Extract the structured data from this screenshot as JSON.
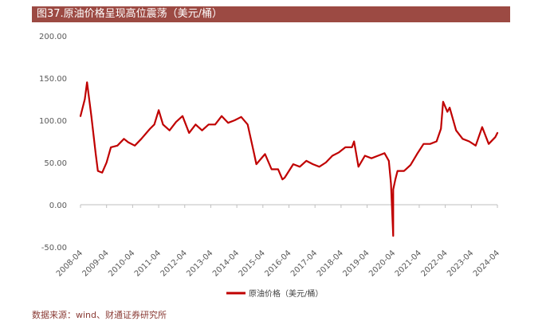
{
  "title": "图37.原油价格呈现高位震荡（美元/桶）",
  "source": "数据来源：wind、财通证券研究所",
  "colors": {
    "title_bg": "#9c4a43",
    "series": "#c00000",
    "axis": "#bfbfbf"
  },
  "chart_data": {
    "type": "line",
    "title": "图37.原油价格呈现高位震荡（美元/桶）",
    "xlabel": "",
    "ylabel": "",
    "ylim": [
      -50,
      200
    ],
    "y_ticks": [
      "200.00",
      "150.00",
      "100.00",
      "50.00",
      "0.00",
      "-50.00"
    ],
    "x_ticks": [
      "2008-04",
      "2009-04",
      "2010-04",
      "2011-04",
      "2012-04",
      "2013-04",
      "2014-04",
      "2015-04",
      "2016-04",
      "2017-04",
      "2018-04",
      "2019-04",
      "2020-04",
      "2021-04",
      "2022-04",
      "2023-04",
      "2024-04"
    ],
    "grid": false,
    "legend": "bottom-center",
    "series": [
      {
        "name": "原油价格（美元/桶）",
        "x": [
          "2008-04",
          "2008-06",
          "2008-07",
          "2008-09",
          "2008-11",
          "2008-12",
          "2009-02",
          "2009-04",
          "2009-06",
          "2009-09",
          "2009-12",
          "2010-02",
          "2010-05",
          "2010-08",
          "2010-12",
          "2011-02",
          "2011-04",
          "2011-06",
          "2011-09",
          "2011-12",
          "2012-03",
          "2012-06",
          "2012-09",
          "2012-12",
          "2013-03",
          "2013-06",
          "2013-09",
          "2013-12",
          "2014-03",
          "2014-06",
          "2014-09",
          "2014-12",
          "2015-01",
          "2015-05",
          "2015-08",
          "2015-11",
          "2016-01",
          "2016-02",
          "2016-06",
          "2016-09",
          "2016-12",
          "2017-03",
          "2017-06",
          "2017-09",
          "2017-12",
          "2018-03",
          "2018-06",
          "2018-09",
          "2018-10",
          "2018-12",
          "2019-03",
          "2019-06",
          "2019-09",
          "2019-12",
          "2020-02",
          "2020-03",
          "2020-04",
          "2020-04",
          "2020-05",
          "2020-06",
          "2020-09",
          "2020-12",
          "2021-03",
          "2021-06",
          "2021-09",
          "2021-12",
          "2022-02",
          "2022-03",
          "2022-05",
          "2022-06",
          "2022-09",
          "2022-12",
          "2023-03",
          "2023-06",
          "2023-09",
          "2023-12",
          "2024-03",
          "2024-04"
        ],
        "y": [
          105,
          125,
          145,
          105,
          60,
          40,
          38,
          50,
          68,
          70,
          78,
          74,
          70,
          78,
          90,
          95,
          112,
          95,
          88,
          98,
          105,
          85,
          95,
          88,
          95,
          95,
          105,
          97,
          100,
          104,
          95,
          60,
          48,
          60,
          42,
          42,
          30,
          32,
          48,
          45,
          52,
          48,
          45,
          50,
          58,
          62,
          68,
          68,
          75,
          45,
          58,
          55,
          58,
          61,
          52,
          25,
          -37,
          18,
          30,
          40,
          40,
          47,
          60,
          72,
          72,
          75,
          90,
          122,
          110,
          115,
          88,
          78,
          75,
          70,
          92,
          72,
          80,
          85
        ]
      }
    ]
  }
}
